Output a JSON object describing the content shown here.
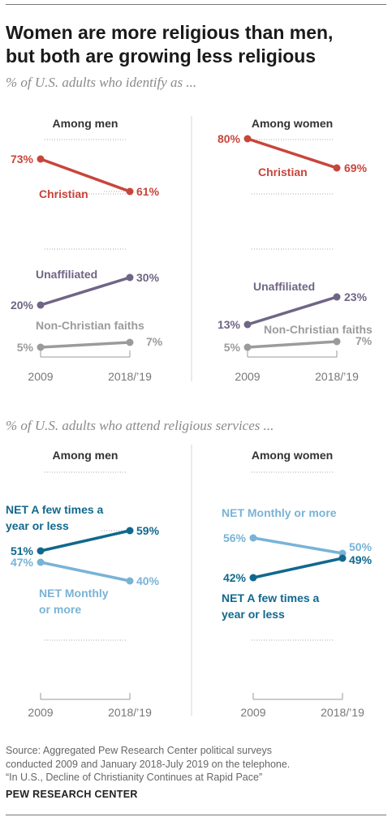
{
  "title_line1": "Women are more religious than men,",
  "title_line2": "but both are growing less religious",
  "colors": {
    "christian": "#c8453b",
    "unaffiliated": "#6f6585",
    "non_christian": "#9b9b9b",
    "net_few": "#11688d",
    "net_monthly": "#79b3d6",
    "axis": "#999999",
    "dots": "#aaaaaa",
    "divider": "#d5d5d5"
  },
  "chart_data": [
    {
      "type": "line",
      "title": "Among men",
      "subtitle": "% of U.S. adults who identify as ...",
      "x": [
        "2009",
        "2018/’19"
      ],
      "ylim": [
        0,
        100
      ],
      "series": [
        {
          "name": "Christian",
          "values": [
            73,
            61
          ],
          "labels": [
            "73%",
            "61%"
          ]
        },
        {
          "name": "Unaffiliated",
          "values": [
            20,
            30
          ],
          "labels": [
            "20%",
            "30%"
          ]
        },
        {
          "name": "Non-Christian faiths",
          "values": [
            5,
            7
          ],
          "labels": [
            "5%",
            "7%"
          ]
        }
      ]
    },
    {
      "type": "line",
      "title": "Among women",
      "subtitle": "% of U.S. adults who identify as ...",
      "x": [
        "2009",
        "2018/’19"
      ],
      "ylim": [
        0,
        100
      ],
      "series": [
        {
          "name": "Christian",
          "values": [
            80,
            69
          ],
          "labels": [
            "80%",
            "69%"
          ]
        },
        {
          "name": "Unaffiliated",
          "values": [
            13,
            23
          ],
          "labels": [
            "13%",
            "23%"
          ]
        },
        {
          "name": "Non-Christian faiths",
          "values": [
            5,
            7
          ],
          "labels": [
            "5%",
            "7%"
          ]
        }
      ]
    },
    {
      "type": "line",
      "title": "Among men",
      "subtitle": "% of U.S. adults who attend religious services ...",
      "x": [
        "2009",
        "2018/’19"
      ],
      "ylim": [
        0,
        100
      ],
      "series": [
        {
          "name": "NET A few times a year or less",
          "label_lines": [
            "NET A few times a",
            "year or less"
          ],
          "values": [
            51,
            59
          ],
          "labels": [
            "51%",
            "59%"
          ]
        },
        {
          "name": "NET Monthly or more",
          "label_lines": [
            "NET Monthly",
            "or more"
          ],
          "values": [
            47,
            40
          ],
          "labels": [
            "47%",
            "40%"
          ]
        }
      ]
    },
    {
      "type": "line",
      "title": "Among women",
      "subtitle": "% of U.S. adults who attend religious services ...",
      "x": [
        "2009",
        "2018/’19"
      ],
      "ylim": [
        0,
        100
      ],
      "series": [
        {
          "name": "NET Monthly or more",
          "label_lines": [
            "NET Monthly or more"
          ],
          "values": [
            56,
            50
          ],
          "labels": [
            "56%",
            "50%"
          ]
        },
        {
          "name": "NET A few times a year or less",
          "label_lines": [
            "NET A few times a",
            "year or less"
          ],
          "values": [
            42,
            49
          ],
          "labels": [
            "42%",
            "49%"
          ]
        }
      ]
    }
  ],
  "footer": {
    "source_line1": "Source: Aggregated Pew Research Center political surveys",
    "source_line2": "conducted 2009 and January 2018-July 2019 on the telephone.",
    "source_line3": "“In U.S., Decline of Christianity Continues at Rapid Pace”",
    "brand": "PEW RESEARCH CENTER"
  }
}
